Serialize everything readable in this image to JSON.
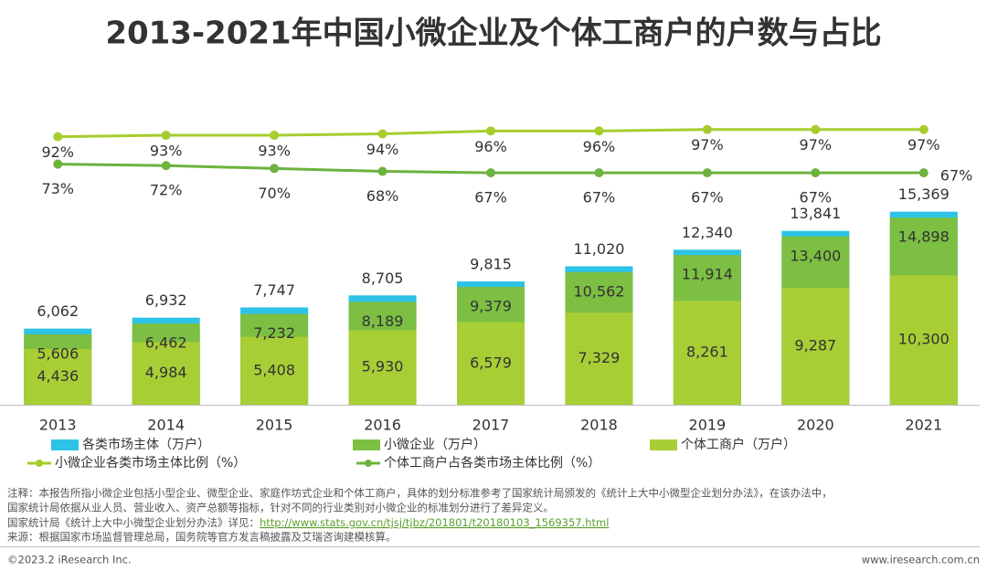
{
  "chart_data": {
    "type": "bar",
    "title": "2013-2021年中国小微企业及个体工商户的户数与占比",
    "categories": [
      "2013",
      "2014",
      "2015",
      "2016",
      "2017",
      "2018",
      "2019",
      "2020",
      "2021"
    ],
    "ylim": [
      0,
      16000
    ],
    "y2lim": [
      0,
      100
    ],
    "series": [
      {
        "name": "各类市场主体（万户）",
        "color": "#2cc3e6",
        "values": [
          6062,
          6932,
          7747,
          8705,
          9815,
          11020,
          12340,
          13841,
          15369
        ],
        "value_labels": [
          "6,062",
          "6,932",
          "7,747",
          "8,705",
          "9,815",
          "11,020",
          "12,340",
          "13,841",
          "15,369"
        ]
      },
      {
        "name": "小微企业（万户）",
        "color": "#7cbf43",
        "values": [
          5606,
          6462,
          7232,
          8189,
          9379,
          10562,
          11914,
          13400,
          14898
        ],
        "value_labels": [
          "5,606",
          "6,462",
          "7,232",
          "8,189",
          "9,379",
          "10,562",
          "11,914",
          "13,400",
          "14,898"
        ]
      },
      {
        "name": "个体工商户（万户）",
        "color": "#a8ce36",
        "values": [
          4436,
          4984,
          5408,
          5930,
          6579,
          7329,
          8261,
          9287,
          10300
        ],
        "value_labels": [
          "4,436",
          "4,984",
          "5,408",
          "5,930",
          "6,579",
          "7,329",
          "8,261",
          "9,287",
          "10,300"
        ]
      },
      {
        "name": "小微企业各类市场主体比例（%）",
        "type": "line",
        "axis": "y2",
        "color": "#a6cd2e",
        "values": [
          92,
          93,
          93,
          94,
          96,
          96,
          97,
          97,
          97
        ],
        "value_labels": [
          "92%",
          "93%",
          "93%",
          "94%",
          "96%",
          "96%",
          "97%",
          "97%",
          "97%"
        ]
      },
      {
        "name": "个体工商户占各类市场主体比例（%）",
        "type": "line",
        "axis": "y2",
        "color": "#6db33f",
        "values": [
          73,
          72,
          70,
          68,
          67,
          67,
          67,
          67,
          67
        ],
        "value_labels": [
          "73%",
          "72%",
          "70%",
          "68%",
          "67%",
          "67%",
          "67%",
          "67%",
          "67%"
        ]
      }
    ],
    "notes": [
      "注释：本报告所指小微企业包括小型企业、微型企业、家庭作坊式企业和个体工商户，具体的划分标准参考了国家统计局颁发的《统计上大中小微型企业划分办法》，在该办法中，",
      "国家统计局依据从业人员、营业收入、资产总额等指标，针对不同的行业类别对小微企业的标准划分进行了差异定义。"
    ],
    "link_prefix": "国家统计局《统计上大中小微型企业划分办法》详见：",
    "link": "http://www.stats.gov.cn/tjsj/tjbz/201801/t20180103_1569357.html",
    "source": "来源：根据国家市场监督管理总局，国务院等官方发言稿披露及艾瑞咨询建模核算。",
    "footer_left": "©2023.2 iResearch Inc.",
    "footer_right": "www.iresearch.com.cn"
  }
}
